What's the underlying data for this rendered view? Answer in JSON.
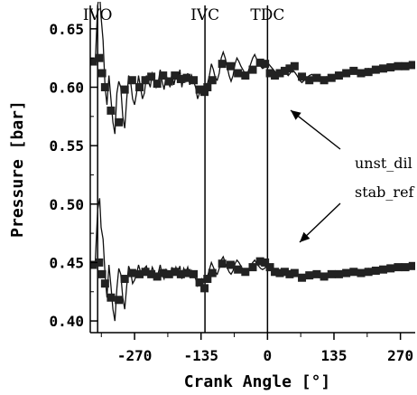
{
  "chart_data": {
    "type": "line",
    "xlabel": "Crank Angle [°]",
    "ylabel": "Pressure [bar]",
    "xlim": [
      -360,
      300
    ],
    "ylim": [
      0.39,
      0.67
    ],
    "x_ticks": [
      -270,
      -135,
      0,
      135,
      270
    ],
    "x_tick_labels": [
      "-270",
      "-135",
      "0",
      "135",
      "270"
    ],
    "y_ticks": [
      0.4,
      0.45,
      0.5,
      0.55,
      0.6,
      0.65
    ],
    "y_tick_labels": [
      "0.40",
      "0.45",
      "0.50",
      "0.55",
      "0.60",
      "0.65"
    ],
    "grid": false,
    "vlines": [
      {
        "label": "IVO",
        "x": -345
      },
      {
        "label": "IVC",
        "x": -127
      },
      {
        "label": "TDC",
        "x": 0
      }
    ],
    "series": [
      {
        "name": "unst_dil",
        "line_x": [
          -350,
          -345,
          -341,
          -338,
          -334,
          -330,
          -326,
          -322,
          -318,
          -314,
          -310,
          -306,
          -302,
          -298,
          -294,
          -290,
          -286,
          -282,
          -278,
          -274,
          -270,
          -266,
          -262,
          -258,
          -254,
          -250,
          -246,
          -242,
          -238,
          -234,
          -230,
          -226,
          -222,
          -218,
          -214,
          -210,
          -206,
          -202,
          -198,
          -194,
          -190,
          -186,
          -182,
          -178,
          -174,
          -170,
          -166,
          -162,
          -158,
          -154,
          -150,
          -146,
          -142,
          -138,
          -134,
          -130,
          -126,
          -122,
          -118,
          -114,
          -110,
          -106,
          -102,
          -98,
          -94,
          -90,
          -86,
          -82,
          -78,
          -74,
          -70,
          -66,
          -62,
          -58,
          -54,
          -50,
          -46,
          -42,
          -38,
          -34,
          -30,
          -26,
          -22,
          -18,
          -14,
          -10,
          -6,
          -2,
          2,
          6,
          10,
          14,
          18,
          22,
          26,
          30,
          34,
          38,
          42,
          46,
          50,
          55,
          60,
          65,
          70,
          75,
          80,
          85,
          90,
          95,
          100,
          105,
          110,
          115,
          120,
          125,
          130,
          135,
          140,
          145,
          150,
          155,
          160,
          165,
          170,
          175,
          180,
          185,
          190,
          195,
          200,
          205,
          210,
          215,
          220,
          225,
          230,
          235,
          240,
          245,
          250,
          255,
          260,
          265,
          270,
          275,
          280,
          285,
          290,
          295,
          300
        ],
        "line_y": [
          0.62,
          0.67,
          0.68,
          0.66,
          0.64,
          0.6,
          0.585,
          0.61,
          0.59,
          0.57,
          0.56,
          0.595,
          0.605,
          0.6,
          0.575,
          0.565,
          0.59,
          0.61,
          0.605,
          0.59,
          0.585,
          0.595,
          0.61,
          0.6,
          0.59,
          0.595,
          0.61,
          0.605,
          0.6,
          0.612,
          0.608,
          0.6,
          0.604,
          0.615,
          0.605,
          0.598,
          0.61,
          0.606,
          0.6,
          0.612,
          0.602,
          0.61,
          0.605,
          0.615,
          0.6,
          0.61,
          0.605,
          0.612,
          0.602,
          0.61,
          0.605,
          0.6,
          0.59,
          0.595,
          0.6,
          0.596,
          0.598,
          0.603,
          0.61,
          0.62,
          0.615,
          0.608,
          0.606,
          0.612,
          0.625,
          0.63,
          0.625,
          0.618,
          0.61,
          0.605,
          0.61,
          0.62,
          0.625,
          0.622,
          0.618,
          0.615,
          0.612,
          0.61,
          0.615,
          0.62,
          0.625,
          0.628,
          0.624,
          0.62,
          0.618,
          0.616,
          0.617,
          0.619,
          0.62,
          0.618,
          0.616,
          0.614,
          0.612,
          0.61,
          0.611,
          0.613,
          0.614,
          0.612,
          0.61,
          0.612,
          0.615,
          0.613,
          0.61,
          0.606,
          0.604,
          0.606,
          0.608,
          0.61,
          0.611,
          0.609,
          0.607,
          0.605,
          0.606,
          0.608,
          0.609,
          0.607,
          0.606,
          0.607,
          0.609,
          0.611,
          0.61,
          0.609,
          0.611,
          0.613,
          0.612,
          0.614,
          0.615,
          0.614,
          0.612,
          0.613,
          0.615,
          0.616,
          0.614,
          0.612,
          0.613,
          0.615,
          0.616,
          0.617,
          0.616,
          0.615,
          0.616,
          0.618,
          0.619,
          0.618,
          0.617,
          0.618,
          0.619,
          0.62,
          0.619,
          0.618,
          0.616
        ],
        "marker_x": [
          -355,
          -342,
          -336,
          -330,
          -318,
          -302,
          -290,
          -275,
          -260,
          -248,
          -236,
          -224,
          -212,
          -200,
          -188,
          -176,
          -164,
          -150,
          -138,
          -128,
          -122,
          -112,
          -92,
          -75,
          -60,
          -45,
          -30,
          -15,
          -5,
          5,
          15,
          25,
          35,
          45,
          55,
          70,
          85,
          100,
          115,
          130,
          145,
          160,
          175,
          190,
          205,
          220,
          235,
          250,
          265,
          280,
          295
        ],
        "marker_y": [
          0.622,
          0.625,
          0.612,
          0.6,
          0.58,
          0.57,
          0.598,
          0.606,
          0.6,
          0.606,
          0.609,
          0.603,
          0.61,
          0.605,
          0.61,
          0.607,
          0.608,
          0.606,
          0.598,
          0.596,
          0.6,
          0.606,
          0.62,
          0.618,
          0.612,
          0.61,
          0.615,
          0.621,
          0.62,
          0.612,
          0.61,
          0.612,
          0.614,
          0.616,
          0.618,
          0.609,
          0.606,
          0.608,
          0.606,
          0.608,
          0.61,
          0.612,
          0.614,
          0.612,
          0.613,
          0.615,
          0.616,
          0.617,
          0.618,
          0.618,
          0.619
        ]
      },
      {
        "name": "stab_ref",
        "line_x": [
          -350,
          -345,
          -341,
          -338,
          -334,
          -330,
          -326,
          -322,
          -318,
          -314,
          -310,
          -306,
          -302,
          -298,
          -294,
          -290,
          -286,
          -282,
          -278,
          -274,
          -270,
          -266,
          -262,
          -258,
          -254,
          -250,
          -246,
          -242,
          -238,
          -234,
          -230,
          -226,
          -222,
          -218,
          -214,
          -210,
          -206,
          -202,
          -198,
          -194,
          -190,
          -186,
          -182,
          -178,
          -174,
          -170,
          -166,
          -162,
          -158,
          -154,
          -150,
          -146,
          -142,
          -138,
          -134,
          -130,
          -126,
          -122,
          -118,
          -114,
          -110,
          -106,
          -102,
          -98,
          -94,
          -90,
          -86,
          -82,
          -78,
          -74,
          -70,
          -66,
          -62,
          -58,
          -54,
          -50,
          -46,
          -42,
          -38,
          -34,
          -30,
          -26,
          -22,
          -18,
          -14,
          -10,
          -6,
          -2,
          2,
          6,
          10,
          14,
          18,
          22,
          26,
          30,
          34,
          38,
          42,
          46,
          50,
          55,
          60,
          65,
          70,
          75,
          80,
          85,
          90,
          95,
          100,
          105,
          110,
          115,
          120,
          125,
          130,
          135,
          140,
          145,
          150,
          155,
          160,
          165,
          170,
          175,
          180,
          185,
          190,
          195,
          200,
          205,
          210,
          215,
          220,
          225,
          230,
          235,
          240,
          245,
          250,
          255,
          260,
          265,
          270,
          275,
          280,
          285,
          290,
          295,
          300
        ],
        "line_y": [
          0.45,
          0.495,
          0.505,
          0.48,
          0.47,
          0.44,
          0.42,
          0.448,
          0.43,
          0.41,
          0.4,
          0.428,
          0.445,
          0.44,
          0.42,
          0.41,
          0.43,
          0.447,
          0.442,
          0.432,
          0.435,
          0.44,
          0.448,
          0.442,
          0.438,
          0.445,
          0.447,
          0.44,
          0.438,
          0.446,
          0.442,
          0.437,
          0.441,
          0.448,
          0.44,
          0.436,
          0.444,
          0.442,
          0.438,
          0.446,
          0.44,
          0.446,
          0.441,
          0.447,
          0.436,
          0.445,
          0.441,
          0.446,
          0.438,
          0.443,
          0.44,
          0.436,
          0.43,
          0.433,
          0.436,
          0.433,
          0.435,
          0.438,
          0.444,
          0.45,
          0.446,
          0.442,
          0.44,
          0.445,
          0.452,
          0.455,
          0.45,
          0.446,
          0.442,
          0.44,
          0.443,
          0.449,
          0.452,
          0.45,
          0.447,
          0.444,
          0.442,
          0.44,
          0.443,
          0.447,
          0.45,
          0.452,
          0.449,
          0.447,
          0.445,
          0.444,
          0.445,
          0.447,
          0.448,
          0.446,
          0.444,
          0.442,
          0.441,
          0.44,
          0.441,
          0.443,
          0.444,
          0.442,
          0.44,
          0.441,
          0.443,
          0.441,
          0.439,
          0.437,
          0.436,
          0.437,
          0.439,
          0.44,
          0.441,
          0.439,
          0.438,
          0.437,
          0.438,
          0.44,
          0.441,
          0.439,
          0.438,
          0.439,
          0.441,
          0.442,
          0.441,
          0.44,
          0.441,
          0.443,
          0.442,
          0.443,
          0.444,
          0.443,
          0.441,
          0.442,
          0.444,
          0.445,
          0.443,
          0.441,
          0.442,
          0.444,
          0.445,
          0.446,
          0.445,
          0.444,
          0.445,
          0.446,
          0.447,
          0.446,
          0.445,
          0.446,
          0.447,
          0.448,
          0.447,
          0.446,
          0.445
        ],
        "marker_x": [
          -355,
          -342,
          -336,
          -330,
          -318,
          -302,
          -290,
          -275,
          -260,
          -248,
          -236,
          -224,
          -212,
          -200,
          -188,
          -176,
          -164,
          -150,
          -138,
          -128,
          -122,
          -112,
          -92,
          -75,
          -60,
          -45,
          -30,
          -15,
          -5,
          5,
          15,
          25,
          35,
          45,
          55,
          70,
          85,
          100,
          115,
          130,
          145,
          160,
          175,
          190,
          205,
          220,
          235,
          250,
          265,
          280,
          295
        ],
        "marker_y": [
          0.448,
          0.45,
          0.44,
          0.432,
          0.42,
          0.418,
          0.436,
          0.441,
          0.44,
          0.442,
          0.44,
          0.438,
          0.441,
          0.44,
          0.442,
          0.44,
          0.441,
          0.44,
          0.433,
          0.428,
          0.436,
          0.441,
          0.449,
          0.448,
          0.444,
          0.442,
          0.446,
          0.451,
          0.45,
          0.446,
          0.442,
          0.441,
          0.442,
          0.44,
          0.441,
          0.437,
          0.439,
          0.44,
          0.438,
          0.44,
          0.44,
          0.441,
          0.442,
          0.441,
          0.442,
          0.443,
          0.444,
          0.445,
          0.446,
          0.446,
          0.447
        ]
      }
    ],
    "annotations": [
      {
        "text": "unst_dil",
        "series": "unst_dil"
      },
      {
        "text": "stab_ref",
        "series": "stab_ref"
      }
    ]
  }
}
